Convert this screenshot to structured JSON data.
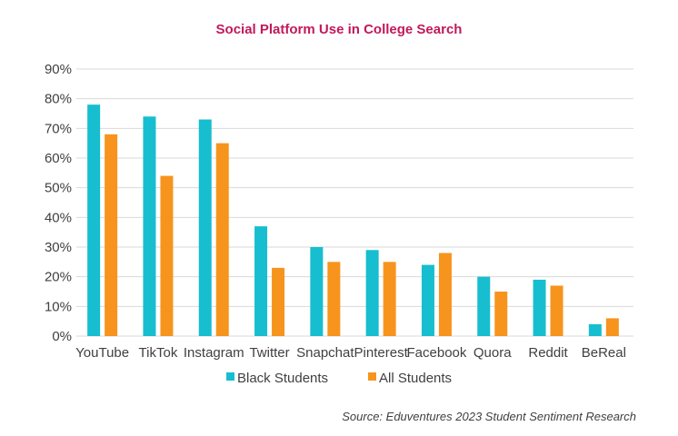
{
  "colors": {
    "title": "#c2185b",
    "grid": "#d9d9d9",
    "text": "#404040"
  },
  "chart_data": {
    "type": "bar",
    "title": "Social Platform Use in College Search",
    "xlabel": "",
    "ylabel": "",
    "ylim": [
      0,
      90
    ],
    "yticks": [
      "0%",
      "10%",
      "20%",
      "30%",
      "40%",
      "50%",
      "60%",
      "70%",
      "80%",
      "90%"
    ],
    "ytick_values": [
      0,
      10,
      20,
      30,
      40,
      50,
      60,
      70,
      80,
      90
    ],
    "categories": [
      "YouTube",
      "TikTok",
      "Instagram",
      "Twitter",
      "Snapchat",
      "Pinterest",
      "Facebook",
      "Quora",
      "Reddit",
      "BeReal"
    ],
    "series": [
      {
        "name": "Black Students",
        "color": "#17becf",
        "values": [
          78,
          74,
          73,
          37,
          30,
          29,
          24,
          20,
          19,
          4
        ]
      },
      {
        "name": "All Students",
        "color": "#f7941d",
        "values": [
          68,
          54,
          65,
          23,
          25,
          25,
          28,
          15,
          17,
          6
        ]
      }
    ],
    "grid": true,
    "legend_position": "bottom"
  },
  "source": "Source: Eduventures 2023 Student Sentiment Research"
}
